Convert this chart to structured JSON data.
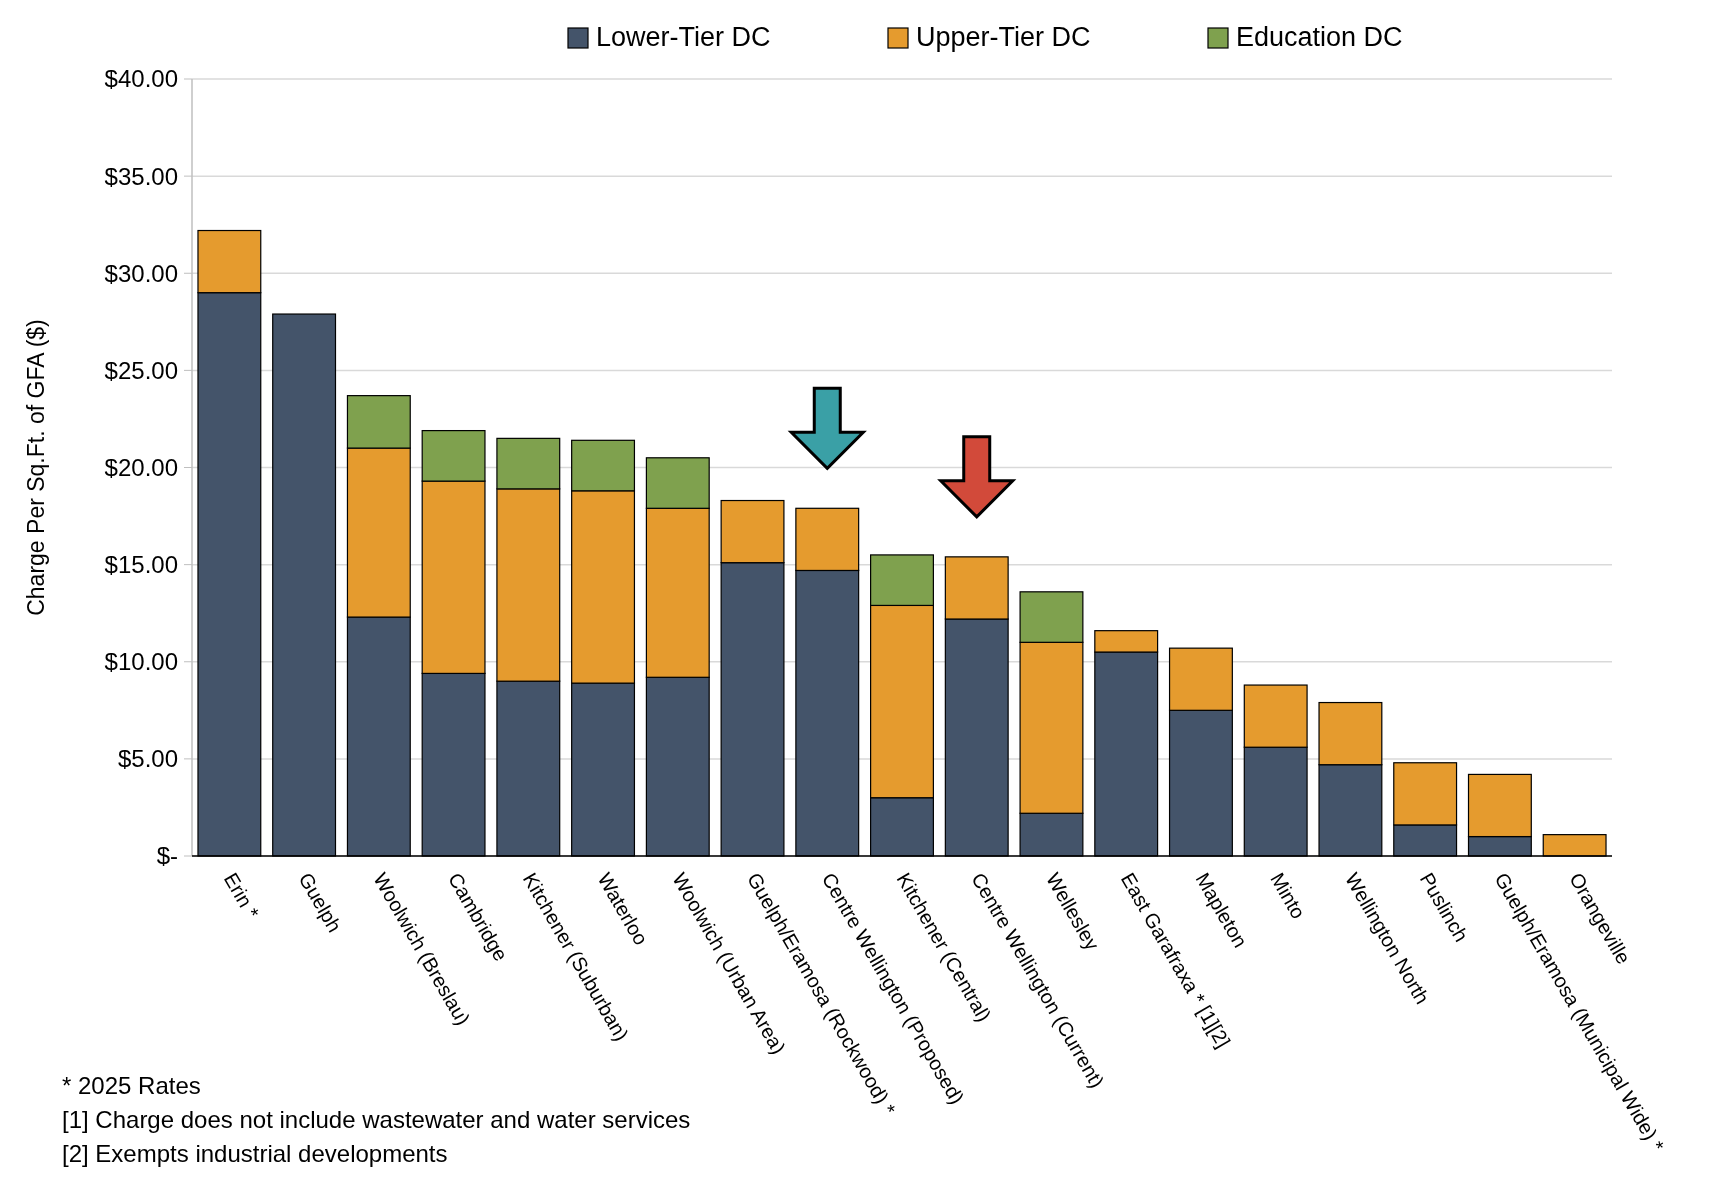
{
  "chart_data": {
    "type": "bar",
    "stacked": true,
    "ylabel": "Charge Per Sq.Ft. of GFA ($)",
    "categories": [
      "Erin *",
      "Guelph",
      "Woolwich (Breslau)",
      "Cambridge",
      "Kitchener (Suburban)",
      "Waterloo",
      "Woolwich (Urban Area)",
      "Guelph/Eramosa (Rockwood) *",
      "Centre Wellington (Proposed)",
      "Kitchener (Central)",
      "Centre Wellington (Current)",
      "Wellesley",
      "East Garafraxa * [1][2]",
      "Mapleton",
      "Minto",
      "Wellington North",
      "Puslinch",
      "Guelph/Eramosa (Municipal Wide) *",
      "Orangeville"
    ],
    "series": [
      {
        "name": "Lower-Tier DC",
        "color": "#44546a",
        "values": [
          29.0,
          27.9,
          12.3,
          9.4,
          9.0,
          8.9,
          9.2,
          15.1,
          14.7,
          3.0,
          12.2,
          2.2,
          10.5,
          7.5,
          5.6,
          4.7,
          1.6,
          1.0,
          0
        ]
      },
      {
        "name": "Upper-Tier DC",
        "color": "#e59b2e",
        "values": [
          3.2,
          0,
          8.7,
          9.9,
          9.9,
          9.9,
          8.7,
          3.2,
          3.2,
          9.9,
          3.2,
          8.8,
          1.1,
          3.2,
          3.2,
          3.2,
          3.2,
          3.2,
          1.1
        ]
      },
      {
        "name": "Education DC",
        "color": "#7fa14e",
        "values": [
          0,
          0,
          2.7,
          2.6,
          2.6,
          2.6,
          2.6,
          0,
          0,
          2.6,
          0,
          2.6,
          0,
          0,
          0,
          0,
          0,
          0,
          0
        ]
      }
    ],
    "ylim": [
      0,
      40
    ],
    "yticks": [
      {
        "value": 0,
        "label": "$-"
      },
      {
        "value": 5,
        "label": "$5.00"
      },
      {
        "value": 10,
        "label": "$10.00"
      },
      {
        "value": 15,
        "label": "$15.00"
      },
      {
        "value": 20,
        "label": "$20.00"
      },
      {
        "value": 25,
        "label": "$25.00"
      },
      {
        "value": 30,
        "label": "$30.00"
      },
      {
        "value": 35,
        "label": "$35.00"
      },
      {
        "value": 40,
        "label": "$40.00"
      }
    ],
    "grid": "y",
    "legend": "top",
    "annotations": [
      "*    2025 Rates",
      "[1] Charge does not include wastewater and water services",
      "[2] Exempts industrial developments"
    ]
  }
}
